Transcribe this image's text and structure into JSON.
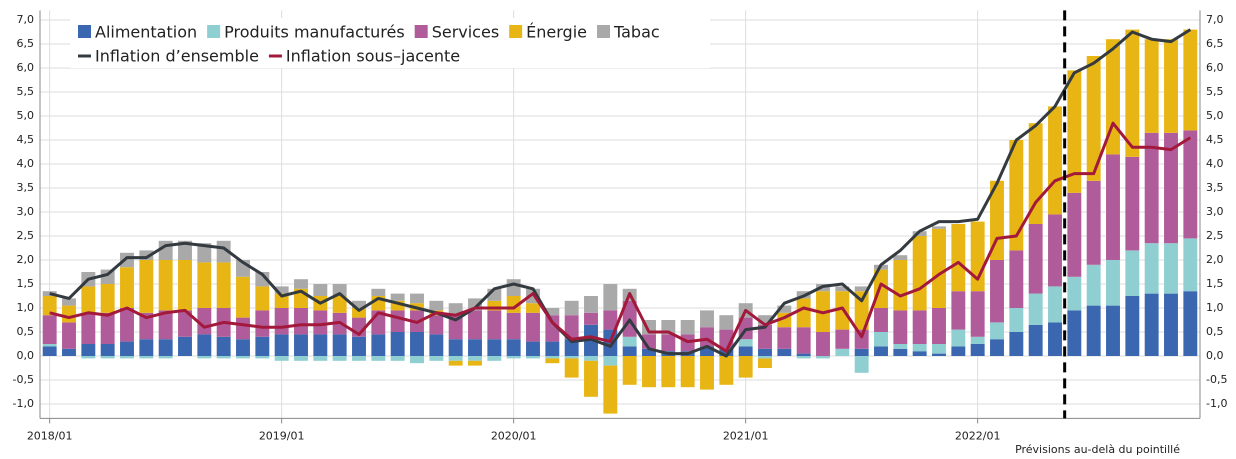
{
  "chart_data": {
    "type": "stacked-bar-line",
    "categories": [
      "2018/01",
      null,
      null,
      null,
      null,
      null,
      null,
      null,
      null,
      null,
      null,
      null,
      "2019/01",
      null,
      null,
      null,
      null,
      null,
      null,
      null,
      null,
      null,
      null,
      null,
      "2020/01",
      null,
      null,
      null,
      null,
      null,
      null,
      null,
      null,
      null,
      null,
      null,
      "2021/01",
      null,
      null,
      null,
      null,
      null,
      null,
      null,
      null,
      null,
      null,
      null,
      "2022/01",
      null,
      null,
      null,
      null,
      null,
      null,
      null,
      null,
      null,
      null,
      null
    ],
    "series": [
      {
        "name": "Alimentation",
        "color": "#3a67b0",
        "kind": "bar",
        "values": [
          0.2,
          0.15,
          0.25,
          0.25,
          0.3,
          0.35,
          0.35,
          0.4,
          0.45,
          0.4,
          0.35,
          0.4,
          0.45,
          0.45,
          0.45,
          0.45,
          0.4,
          0.45,
          0.5,
          0.5,
          0.45,
          0.35,
          0.35,
          0.35,
          0.35,
          0.3,
          0.3,
          0.35,
          0.65,
          0.55,
          0.2,
          0.15,
          0.1,
          0.1,
          0.2,
          0.15,
          0.2,
          0.15,
          0.15,
          0.05,
          0,
          0,
          0.15,
          0.2,
          0.15,
          0.1,
          0.05,
          0.2,
          0.25,
          0.35,
          0.5,
          0.65,
          0.7,
          0.95,
          1.05,
          1.05,
          1.25,
          1.3,
          1.3,
          1.35
        ]
      },
      {
        "name": "Produits manufacturés",
        "color": "#8fcfd1",
        "kind": "bar",
        "values": [
          0.05,
          0,
          -0.05,
          -0.05,
          -0.05,
          -0.05,
          -0.05,
          0,
          -0.05,
          -0.05,
          -0.05,
          -0.05,
          -0.1,
          -0.1,
          -0.1,
          -0.1,
          -0.1,
          -0.1,
          -0.1,
          -0.15,
          -0.1,
          -0.1,
          -0.1,
          -0.1,
          -0.05,
          -0.05,
          -0.05,
          -0.05,
          -0.1,
          -0.2,
          0.2,
          0,
          0,
          0,
          0,
          0,
          0.15,
          -0.05,
          0,
          -0.05,
          -0.05,
          0.15,
          -0.35,
          0.3,
          0.1,
          0.15,
          0.2,
          0.35,
          0.15,
          0.35,
          0.5,
          0.65,
          0.75,
          0.7,
          0.85,
          0.95,
          0.95,
          1.05,
          1.05,
          1.1
        ]
      },
      {
        "name": "Services",
        "color": "#b15c9a",
        "kind": "bar",
        "values": [
          0.6,
          0.55,
          0.65,
          0.65,
          0.7,
          0.55,
          0.6,
          0.55,
          0.55,
          0.6,
          0.45,
          0.55,
          0.55,
          0.55,
          0.5,
          0.45,
          0.4,
          0.5,
          0.45,
          0.45,
          0.4,
          0.5,
          0.6,
          0.6,
          0.55,
          0.6,
          0.55,
          0.5,
          0.25,
          0.4,
          0.75,
          0.3,
          0.35,
          0.35,
          0.4,
          0.4,
          0.45,
          0.5,
          0.45,
          0.55,
          0.5,
          0.4,
          0.4,
          0.5,
          0.7,
          0.7,
          0.75,
          0.8,
          0.95,
          1.3,
          1.2,
          1.45,
          1.5,
          1.75,
          1.75,
          2.2,
          1.95,
          2.3,
          2.3,
          2.25
        ]
      },
      {
        "name": "Énergie",
        "color": "#e8b614",
        "kind": "bar",
        "values": [
          0.4,
          0.35,
          0.55,
          0.6,
          0.85,
          1.1,
          1.05,
          1.05,
          0.95,
          0.95,
          0.85,
          0.5,
          0.3,
          0.4,
          0.3,
          0.35,
          0.2,
          0.3,
          0.2,
          0.15,
          0.1,
          -0.1,
          -0.1,
          0.2,
          0.35,
          0.2,
          -0.1,
          -0.4,
          -0.75,
          -1.0,
          -0.6,
          -0.65,
          -0.65,
          -0.65,
          -0.7,
          -0.6,
          -0.45,
          -0.2,
          0.3,
          0.6,
          0.85,
          0.8,
          0.8,
          0.8,
          1.05,
          1.55,
          1.65,
          1.4,
          1.45,
          1.65,
          2.3,
          2.1,
          2.25,
          2.55,
          2.6,
          2.4,
          2.65,
          1.95,
          1.95,
          2.1
        ]
      },
      {
        "name": "Tabac",
        "color": "#a9a9a9",
        "kind": "bar",
        "values": [
          0.1,
          0.15,
          0.3,
          0.3,
          0.3,
          0.2,
          0.4,
          0.4,
          0.4,
          0.45,
          0.35,
          0.3,
          0.15,
          0.2,
          0.25,
          0.25,
          0.15,
          0.15,
          0.15,
          0.2,
          0.2,
          0.25,
          0.25,
          0.25,
          0.35,
          0.3,
          0.15,
          0.3,
          0.35,
          0.55,
          0.25,
          0.3,
          0.3,
          0.3,
          0.35,
          0.3,
          0.3,
          0.2,
          0.15,
          0.15,
          0.15,
          0.1,
          0.1,
          0.1,
          0.1,
          0.1,
          0.05,
          0,
          0,
          0,
          0,
          0,
          0,
          0,
          0,
          0,
          0,
          0,
          0,
          0
        ]
      },
      {
        "name": "Inflation d’ensemble",
        "color": "#333a40",
        "kind": "line",
        "values": [
          1.3,
          1.2,
          1.6,
          1.7,
          2.05,
          2.05,
          2.3,
          2.35,
          2.3,
          2.25,
          1.95,
          1.7,
          1.25,
          1.35,
          1.1,
          1.3,
          0.95,
          1.2,
          1.1,
          1.0,
          0.9,
          0.75,
          1.0,
          1.4,
          1.5,
          1.4,
          0.7,
          0.3,
          0.35,
          0.2,
          0.75,
          0.15,
          0.05,
          0.05,
          0.2,
          0.0,
          0.55,
          0.6,
          1.1,
          1.25,
          1.45,
          1.5,
          1.15,
          1.9,
          2.2,
          2.6,
          2.8,
          2.8,
          2.85,
          3.6,
          4.5,
          4.8,
          5.2,
          5.9,
          6.1,
          6.4,
          6.75,
          6.6,
          6.55,
          6.8
        ]
      },
      {
        "name": "Inflation sous–jacente",
        "color": "#a3193b",
        "kind": "line",
        "values": [
          0.9,
          0.8,
          0.9,
          0.85,
          1.0,
          0.8,
          0.9,
          0.95,
          0.6,
          0.7,
          0.65,
          0.6,
          0.6,
          0.65,
          0.65,
          0.7,
          0.45,
          0.9,
          0.8,
          0.7,
          0.9,
          0.85,
          1.0,
          1.0,
          1.0,
          1.3,
          0.7,
          0.35,
          0.4,
          0.3,
          1.3,
          0.5,
          0.5,
          0.3,
          0.35,
          0.1,
          0.95,
          0.65,
          0.8,
          1.0,
          0.9,
          1.0,
          0.4,
          1.5,
          1.25,
          1.4,
          1.7,
          1.95,
          1.6,
          2.45,
          2.5,
          3.2,
          3.65,
          3.8,
          3.8,
          4.85,
          4.35,
          4.35,
          4.3,
          4.55
        ]
      }
    ],
    "ylim": [
      -1.3,
      7.2
    ],
    "yticks": [
      {
        "value": -1,
        "label": "-1,0"
      },
      {
        "value": -0.5,
        "label": "-0,5"
      },
      {
        "value": 0,
        "label": "0,0"
      },
      {
        "value": 0.5,
        "label": "0,5"
      },
      {
        "value": 1,
        "label": "1,0"
      },
      {
        "value": 1.5,
        "label": "1,5"
      },
      {
        "value": 2,
        "label": "2,0"
      },
      {
        "value": 2.5,
        "label": "2,5"
      },
      {
        "value": 3,
        "label": "3,0"
      },
      {
        "value": 3.5,
        "label": "3,5"
      },
      {
        "value": 4,
        "label": "4,0"
      },
      {
        "value": 4.5,
        "label": "4,5"
      },
      {
        "value": 5,
        "label": "5,0"
      },
      {
        "value": 5.5,
        "label": "5,5"
      },
      {
        "value": 6,
        "label": "6,0"
      },
      {
        "value": 6.5,
        "label": "6,5"
      },
      {
        "value": 7,
        "label": "7,0"
      }
    ],
    "grid": true,
    "note": "Prévisions au-delà du pointillé"
  }
}
